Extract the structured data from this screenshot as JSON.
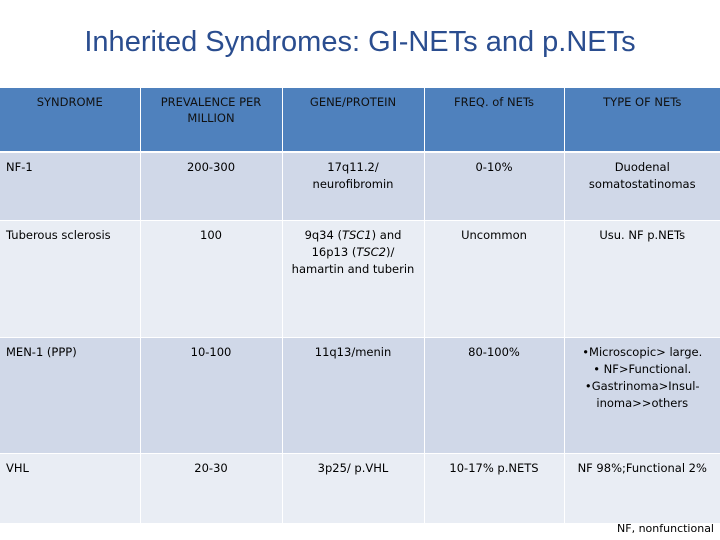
{
  "title": "Inherited Syndromes: GI-NETs and p.NETs",
  "table": {
    "headers": [
      "SYNDROME",
      "PREVALENCE PER MILLION",
      "GENE/PROTEIN",
      "FREQ. of NETs",
      "TYPE OF NETs"
    ],
    "rows": [
      {
        "syndrome": "NF-1",
        "prevalence": "200-300",
        "gene": "17q11.2/ neurofibromin",
        "freq": "0-10%",
        "type": "Duodenal somatostatinomas"
      },
      {
        "syndrome": "Tuberous sclerosis",
        "prevalence": "100",
        "gene_parts": [
          "9q34 (",
          "TSC1",
          ") and 16p13 (",
          "TSC2",
          ")/ hamartin and tuberin"
        ],
        "freq": "Uncommon",
        "type": "Usu. NF p.NETs"
      },
      {
        "syndrome": "MEN-1 (PPP)",
        "prevalence": "10-100",
        "gene": "11q13/menin",
        "freq": "80-100%",
        "type_bullets": [
          "•Microscopic> large.",
          "• NF>Functional.",
          "•Gastrinoma>Insul-inoma>>others"
        ]
      },
      {
        "syndrome": "VHL",
        "prevalence": "20-30",
        "gene": "3p25/ p.VHL",
        "freq": "10-17% p.NETS",
        "type": "NF 98%;Functional 2%"
      }
    ]
  },
  "footnote": "NF, nonfunctional",
  "colors": {
    "title": "#2a4d8f",
    "header_bg": "#4f81bd",
    "row_dark": "#d0d8e8",
    "row_light": "#e9edf4"
  }
}
